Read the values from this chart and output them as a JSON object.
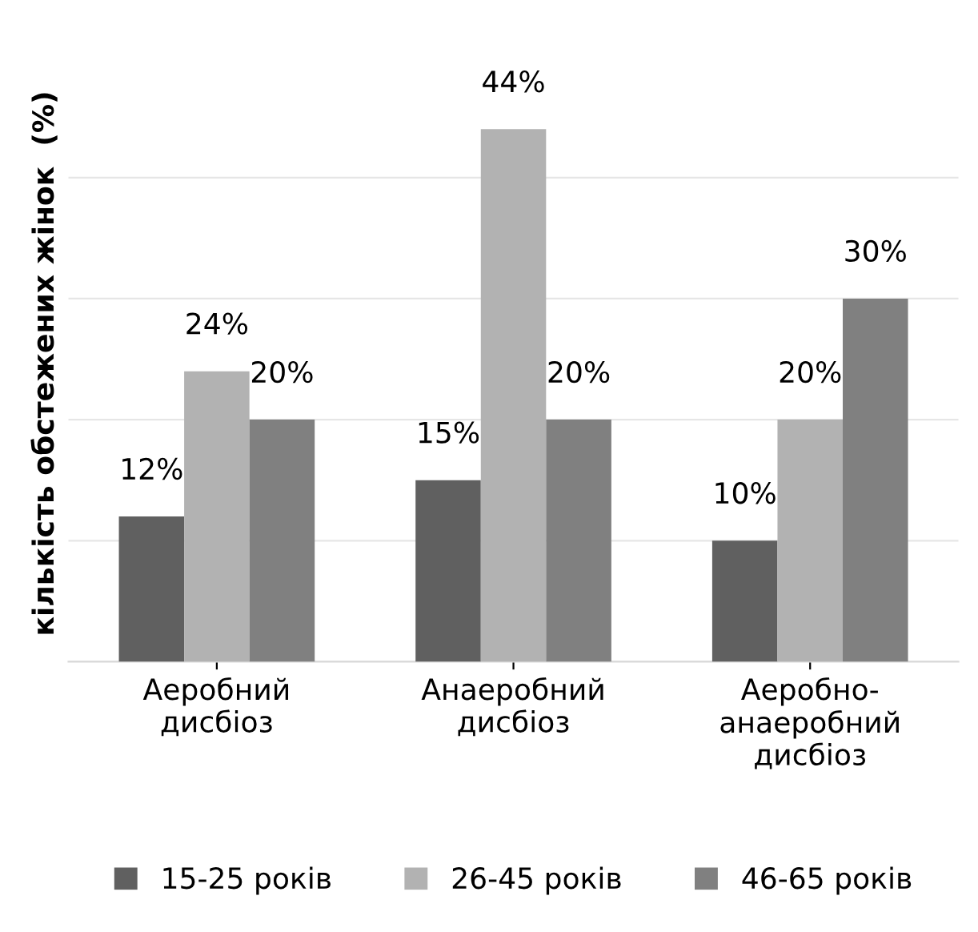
{
  "chart_data": {
    "type": "bar",
    "ylabel": "кількість обстежених жінок  (%)",
    "categories": [
      "Аеробний\nдисбіоз",
      "Анаеробний\nдисбіоз",
      "Аеробно-\nанаеробний\nдисбіоз"
    ],
    "series": [
      {
        "name": "15-25 років",
        "color": "#606060",
        "values": [
          12,
          15,
          10
        ],
        "value_labels": [
          "12%",
          "15%",
          "10%"
        ]
      },
      {
        "name": "26-45 років",
        "color": "#b2b2b2",
        "values": [
          24,
          44,
          20
        ],
        "value_labels": [
          "24%",
          "44%",
          "20%"
        ]
      },
      {
        "name": "46-65 років",
        "color": "#808080",
        "values": [
          20,
          20,
          30
        ],
        "value_labels": [
          "20%",
          "20%",
          "30%"
        ]
      }
    ],
    "tick_labels": "x",
    "grid": "y",
    "legend": "bottom"
  }
}
